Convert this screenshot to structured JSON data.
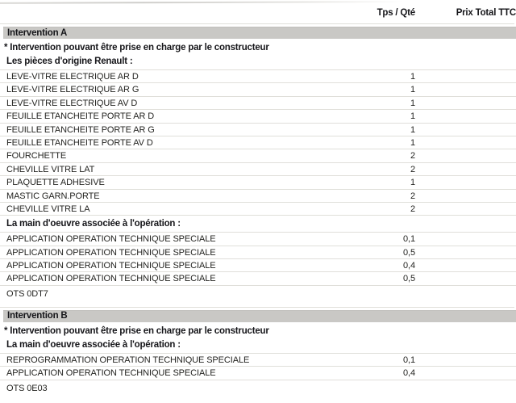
{
  "colors": {
    "bar_bg": "#c9c8c5",
    "text": "#242421",
    "row_line": "#e0dfda"
  },
  "header": {
    "qty_label": "Tps / Qté",
    "price_label": "Prix Total TTC"
  },
  "sections": [
    {
      "title": "Intervention A",
      "note": "* Intervention pouvant être prise en charge par le constructeur",
      "groups": [
        {
          "label": "Les pièces d'origine Renault :",
          "rows": [
            {
              "label": "LEVE-VITRE ELECTRIQUE AR D",
              "qty": "1"
            },
            {
              "label": "LEVE-VITRE ELECTRIQUE AR G",
              "qty": "1"
            },
            {
              "label": "LEVE-VITRE ELECTRIQUE AV D",
              "qty": "1"
            },
            {
              "label": "FEUILLE ETANCHEITE PORTE AR D",
              "qty": "1"
            },
            {
              "label": "FEUILLE ETANCHEITE PORTE AR G",
              "qty": "1"
            },
            {
              "label": "FEUILLE ETANCHEITE PORTE AV D",
              "qty": "1"
            },
            {
              "label": "FOURCHETTE",
              "qty": "2"
            },
            {
              "label": "CHEVILLE VITRE LAT",
              "qty": "2"
            },
            {
              "label": "PLAQUETTE ADHESIVE",
              "qty": "1"
            },
            {
              "label": "MASTIC GARN.PORTE",
              "qty": "2"
            },
            {
              "label": "CHEVILLE VITRE LA",
              "qty": "2"
            }
          ]
        },
        {
          "label": "La main d'oeuvre associée à l'opération :",
          "rows": [
            {
              "label": "APPLICATION OPERATION TECHNIQUE SPECIALE",
              "qty": "0,1"
            },
            {
              "label": "APPLICATION OPERATION TECHNIQUE SPECIALE",
              "qty": "0,5"
            },
            {
              "label": "APPLICATION OPERATION TECHNIQUE SPECIALE",
              "qty": "0,4"
            },
            {
              "label": "APPLICATION OPERATION TECHNIQUE SPECIALE",
              "qty": "0,5"
            }
          ]
        }
      ],
      "code": "OTS 0DT7"
    },
    {
      "title": "Intervention B",
      "note": "* Intervention pouvant être prise en charge par le constructeur",
      "groups": [
        {
          "label": "La main d'oeuvre associée à l'opération :",
          "rows": [
            {
              "label": "REPROGRAMMATION OPERATION TECHNIQUE SPECIALE",
              "qty": "0,1"
            },
            {
              "label": "APPLICATION OPERATION TECHNIQUE SPECIALE",
              "qty": "0,4"
            }
          ]
        }
      ],
      "code": "OTS 0E03"
    }
  ]
}
